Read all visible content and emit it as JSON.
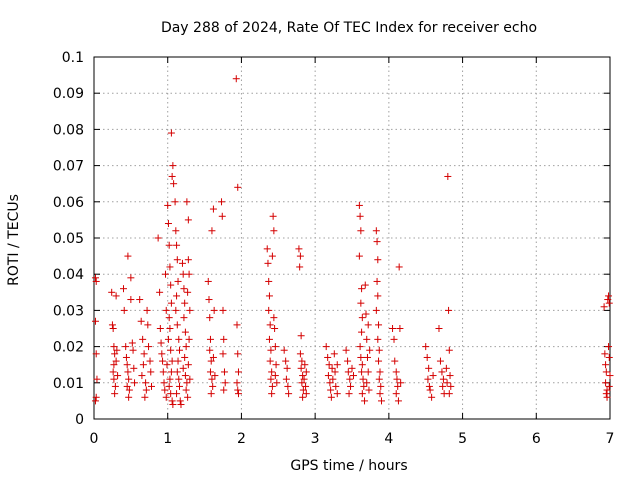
{
  "chart_data": {
    "type": "scatter",
    "title": "Day 288 of 2024, Rate Of TEC Index for receiver echo",
    "xlabel": "GPS time / hours",
    "ylabel": "ROTI / TECUs",
    "xlim": [
      0,
      7
    ],
    "ylim": [
      0,
      0.1
    ],
    "xticks": [
      0,
      1,
      2,
      3,
      4,
      5,
      6,
      7
    ],
    "xtick_labels": [
      "0",
      "1",
      "2",
      "3",
      "4",
      "5",
      "6",
      "7"
    ],
    "yticks": [
      0,
      0.01,
      0.02,
      0.03,
      0.04,
      0.05,
      0.06,
      0.07,
      0.08,
      0.09,
      0.1
    ],
    "ytick_labels": [
      "0",
      "0.01",
      "0.02",
      "0.03",
      "0.04",
      "0.05",
      "0.06",
      "0.07",
      "0.08",
      "0.09",
      "0.1"
    ],
    "grid": true,
    "marker": "+",
    "marker_color": "#d40000",
    "series": [
      {
        "name": "ROTI",
        "points": [
          [
            0.02,
            0.039
          ],
          [
            0.03,
            0.038
          ],
          [
            0.02,
            0.027
          ],
          [
            0.03,
            0.018
          ],
          [
            0.04,
            0.011
          ],
          [
            0.03,
            0.006
          ],
          [
            0.02,
            0.005
          ],
          [
            0.24,
            0.035
          ],
          [
            0.25,
            0.026
          ],
          [
            0.26,
            0.025
          ],
          [
            0.27,
            0.02
          ],
          [
            0.28,
            0.018
          ],
          [
            0.27,
            0.015
          ],
          [
            0.26,
            0.013
          ],
          [
            0.27,
            0.011
          ],
          [
            0.29,
            0.009
          ],
          [
            0.28,
            0.007
          ],
          [
            0.3,
            0.034
          ],
          [
            0.31,
            0.019
          ],
          [
            0.3,
            0.016
          ],
          [
            0.32,
            0.012
          ],
          [
            0.4,
            0.036
          ],
          [
            0.41,
            0.03
          ],
          [
            0.43,
            0.02
          ],
          [
            0.44,
            0.017
          ],
          [
            0.45,
            0.015
          ],
          [
            0.46,
            0.013
          ],
          [
            0.47,
            0.011
          ],
          [
            0.45,
            0.009
          ],
          [
            0.48,
            0.008
          ],
          [
            0.47,
            0.006
          ],
          [
            0.46,
            0.045
          ],
          [
            0.5,
            0.039
          ],
          [
            0.5,
            0.033
          ],
          [
            0.52,
            0.021
          ],
          [
            0.53,
            0.019
          ],
          [
            0.54,
            0.014
          ],
          [
            0.55,
            0.01
          ],
          [
            0.62,
            0.033
          ],
          [
            0.64,
            0.027
          ],
          [
            0.66,
            0.022
          ],
          [
            0.68,
            0.018
          ],
          [
            0.67,
            0.015
          ],
          [
            0.65,
            0.012
          ],
          [
            0.7,
            0.01
          ],
          [
            0.71,
            0.008
          ],
          [
            0.69,
            0.006
          ],
          [
            0.73,
            0.026
          ],
          [
            0.74,
            0.02
          ],
          [
            0.76,
            0.016
          ],
          [
            0.77,
            0.013
          ],
          [
            0.78,
            0.009
          ],
          [
            0.72,
            0.03
          ],
          [
            0.87,
            0.05
          ],
          [
            0.89,
            0.035
          ],
          [
            0.9,
            0.025
          ],
          [
            0.91,
            0.021
          ],
          [
            0.92,
            0.018
          ],
          [
            0.93,
            0.016
          ],
          [
            0.94,
            0.013
          ],
          [
            0.95,
            0.01
          ],
          [
            0.96,
            0.008
          ],
          [
            0.97,
            0.04
          ],
          [
            0.98,
            0.03
          ],
          [
            0.99,
            0.015
          ],
          [
            0.98,
            0.006
          ],
          [
            1.0,
            0.059
          ],
          [
            1.01,
            0.054
          ],
          [
            1.02,
            0.048
          ],
          [
            1.03,
            0.042
          ],
          [
            1.04,
            0.037
          ],
          [
            1.05,
            0.032
          ],
          [
            1.02,
            0.028
          ],
          [
            1.03,
            0.025
          ],
          [
            1.01,
            0.022
          ],
          [
            1.04,
            0.019
          ],
          [
            1.06,
            0.016
          ],
          [
            1.05,
            0.013
          ],
          [
            1.03,
            0.011
          ],
          [
            1.02,
            0.009
          ],
          [
            1.04,
            0.007
          ],
          [
            1.06,
            0.005
          ],
          [
            1.07,
            0.004
          ],
          [
            1.05,
            0.079
          ],
          [
            1.07,
            0.07
          ],
          [
            1.06,
            0.067
          ],
          [
            1.08,
            0.065
          ],
          [
            1.1,
            0.06
          ],
          [
            1.11,
            0.052
          ],
          [
            1.12,
            0.048
          ],
          [
            1.13,
            0.044
          ],
          [
            1.14,
            0.038
          ],
          [
            1.12,
            0.034
          ],
          [
            1.11,
            0.03
          ],
          [
            1.13,
            0.026
          ],
          [
            1.15,
            0.022
          ],
          [
            1.16,
            0.019
          ],
          [
            1.14,
            0.016
          ],
          [
            1.13,
            0.013
          ],
          [
            1.15,
            0.011
          ],
          [
            1.16,
            0.009
          ],
          [
            1.12,
            0.007
          ],
          [
            1.17,
            0.005
          ],
          [
            1.18,
            0.004
          ],
          [
            1.2,
            0.043
          ],
          [
            1.21,
            0.04
          ],
          [
            1.22,
            0.036
          ],
          [
            1.23,
            0.032
          ],
          [
            1.22,
            0.028
          ],
          [
            1.24,
            0.024
          ],
          [
            1.25,
            0.02
          ],
          [
            1.23,
            0.017
          ],
          [
            1.21,
            0.014
          ],
          [
            1.24,
            0.012
          ],
          [
            1.26,
            0.01
          ],
          [
            1.25,
            0.008
          ],
          [
            1.27,
            0.006
          ],
          [
            1.28,
            0.044
          ],
          [
            1.29,
            0.04
          ],
          [
            1.27,
            0.035
          ],
          [
            1.3,
            0.03
          ],
          [
            1.29,
            0.022
          ],
          [
            1.28,
            0.015
          ],
          [
            1.3,
            0.011
          ],
          [
            1.26,
            0.06
          ],
          [
            1.28,
            0.055
          ],
          [
            1.55,
            0.038
          ],
          [
            1.56,
            0.033
          ],
          [
            1.57,
            0.028
          ],
          [
            1.58,
            0.022
          ],
          [
            1.57,
            0.019
          ],
          [
            1.59,
            0.016
          ],
          [
            1.58,
            0.013
          ],
          [
            1.6,
            0.011
          ],
          [
            1.61,
            0.009
          ],
          [
            1.59,
            0.007
          ],
          [
            1.6,
            0.052
          ],
          [
            1.62,
            0.058
          ],
          [
            1.63,
            0.03
          ],
          [
            1.62,
            0.017
          ],
          [
            1.64,
            0.012
          ],
          [
            1.73,
            0.06
          ],
          [
            1.74,
            0.056
          ],
          [
            1.75,
            0.03
          ],
          [
            1.76,
            0.022
          ],
          [
            1.75,
            0.018
          ],
          [
            1.77,
            0.013
          ],
          [
            1.78,
            0.01
          ],
          [
            1.76,
            0.008
          ],
          [
            1.93,
            0.094
          ],
          [
            1.95,
            0.064
          ],
          [
            1.94,
            0.026
          ],
          [
            1.95,
            0.018
          ],
          [
            1.96,
            0.013
          ],
          [
            1.94,
            0.01
          ],
          [
            1.95,
            0.008
          ],
          [
            1.96,
            0.007
          ],
          [
            2.35,
            0.047
          ],
          [
            2.36,
            0.043
          ],
          [
            2.37,
            0.038
          ],
          [
            2.38,
            0.034
          ],
          [
            2.37,
            0.03
          ],
          [
            2.39,
            0.026
          ],
          [
            2.38,
            0.022
          ],
          [
            2.4,
            0.019
          ],
          [
            2.39,
            0.016
          ],
          [
            2.41,
            0.013
          ],
          [
            2.4,
            0.011
          ],
          [
            2.42,
            0.009
          ],
          [
            2.41,
            0.007
          ],
          [
            2.43,
            0.056
          ],
          [
            2.44,
            0.052
          ],
          [
            2.42,
            0.045
          ],
          [
            2.44,
            0.028
          ],
          [
            2.45,
            0.025
          ],
          [
            2.46,
            0.02
          ],
          [
            2.47,
            0.015
          ],
          [
            2.46,
            0.012
          ],
          [
            2.48,
            0.01
          ],
          [
            2.58,
            0.019
          ],
          [
            2.6,
            0.016
          ],
          [
            2.62,
            0.014
          ],
          [
            2.61,
            0.011
          ],
          [
            2.63,
            0.009
          ],
          [
            2.64,
            0.007
          ],
          [
            2.78,
            0.047
          ],
          [
            2.8,
            0.045
          ],
          [
            2.79,
            0.042
          ],
          [
            2.81,
            0.023
          ],
          [
            2.8,
            0.018
          ],
          [
            2.82,
            0.016
          ],
          [
            2.81,
            0.014
          ],
          [
            2.83,
            0.012
          ],
          [
            2.82,
            0.01
          ],
          [
            2.84,
            0.008
          ],
          [
            2.83,
            0.006
          ],
          [
            2.85,
            0.011
          ],
          [
            2.86,
            0.015
          ],
          [
            2.87,
            0.009
          ],
          [
            2.88,
            0.013
          ],
          [
            2.88,
            0.007
          ],
          [
            3.15,
            0.02
          ],
          [
            3.17,
            0.017
          ],
          [
            3.19,
            0.015
          ],
          [
            3.18,
            0.012
          ],
          [
            3.2,
            0.01
          ],
          [
            3.21,
            0.008
          ],
          [
            3.22,
            0.006
          ],
          [
            3.23,
            0.014
          ],
          [
            3.24,
            0.011
          ],
          [
            3.26,
            0.018
          ],
          [
            3.27,
            0.013
          ],
          [
            3.28,
            0.009
          ],
          [
            3.3,
            0.007
          ],
          [
            3.3,
            0.015
          ],
          [
            3.42,
            0.019
          ],
          [
            3.44,
            0.016
          ],
          [
            3.45,
            0.013
          ],
          [
            3.47,
            0.011
          ],
          [
            3.48,
            0.009
          ],
          [
            3.46,
            0.007
          ],
          [
            3.5,
            0.014
          ],
          [
            3.52,
            0.012
          ],
          [
            3.6,
            0.059
          ],
          [
            3.61,
            0.056
          ],
          [
            3.62,
            0.052
          ],
          [
            3.6,
            0.045
          ],
          [
            3.63,
            0.036
          ],
          [
            3.62,
            0.032
          ],
          [
            3.64,
            0.028
          ],
          [
            3.63,
            0.024
          ],
          [
            3.61,
            0.02
          ],
          [
            3.62,
            0.017
          ],
          [
            3.64,
            0.015
          ],
          [
            3.63,
            0.013
          ],
          [
            3.65,
            0.011
          ],
          [
            3.66,
            0.009
          ],
          [
            3.64,
            0.007
          ],
          [
            3.67,
            0.005
          ],
          [
            3.68,
            0.037
          ],
          [
            3.69,
            0.029
          ],
          [
            3.7,
            0.022
          ],
          [
            3.71,
            0.017
          ],
          [
            3.72,
            0.013
          ],
          [
            3.7,
            0.01
          ],
          [
            3.73,
            0.008
          ],
          [
            3.74,
            0.019
          ],
          [
            3.72,
            0.026
          ],
          [
            3.83,
            0.052
          ],
          [
            3.84,
            0.049
          ],
          [
            3.85,
            0.044
          ],
          [
            3.84,
            0.038
          ],
          [
            3.85,
            0.034
          ],
          [
            3.83,
            0.03
          ],
          [
            3.86,
            0.026
          ],
          [
            3.85,
            0.022
          ],
          [
            3.87,
            0.019
          ],
          [
            3.86,
            0.016
          ],
          [
            3.88,
            0.013
          ],
          [
            3.87,
            0.011
          ],
          [
            3.89,
            0.009
          ],
          [
            3.88,
            0.007
          ],
          [
            3.9,
            0.005
          ],
          [
            4.05,
            0.025
          ],
          [
            4.07,
            0.022
          ],
          [
            4.08,
            0.016
          ],
          [
            4.1,
            0.013
          ],
          [
            4.11,
            0.011
          ],
          [
            4.12,
            0.009
          ],
          [
            4.1,
            0.007
          ],
          [
            4.13,
            0.005
          ],
          [
            4.14,
            0.042
          ],
          [
            4.15,
            0.025
          ],
          [
            4.16,
            0.01
          ],
          [
            4.5,
            0.02
          ],
          [
            4.52,
            0.017
          ],
          [
            4.54,
            0.014
          ],
          [
            4.53,
            0.011
          ],
          [
            4.55,
            0.009
          ],
          [
            4.56,
            0.008
          ],
          [
            4.58,
            0.006
          ],
          [
            4.6,
            0.012
          ],
          [
            4.68,
            0.025
          ],
          [
            4.7,
            0.016
          ],
          [
            4.72,
            0.013
          ],
          [
            4.74,
            0.011
          ],
          [
            4.73,
            0.009
          ],
          [
            4.75,
            0.007
          ],
          [
            4.78,
            0.014
          ],
          [
            4.79,
            0.01
          ],
          [
            4.8,
            0.067
          ],
          [
            4.81,
            0.03
          ],
          [
            4.82,
            0.019
          ],
          [
            4.83,
            0.012
          ],
          [
            4.84,
            0.009
          ],
          [
            4.82,
            0.007
          ],
          [
            6.92,
            0.031
          ],
          [
            6.93,
            0.018
          ],
          [
            6.94,
            0.015
          ],
          [
            6.95,
            0.013
          ],
          [
            6.94,
            0.01
          ],
          [
            6.96,
            0.008
          ],
          [
            6.95,
            0.007
          ],
          [
            6.96,
            0.006
          ],
          [
            6.97,
            0.033
          ],
          [
            6.98,
            0.034
          ],
          [
            6.99,
            0.032
          ],
          [
            6.98,
            0.02
          ],
          [
            6.99,
            0.017
          ],
          [
            7.0,
            0.012
          ],
          [
            6.99,
            0.009
          ]
        ]
      }
    ]
  }
}
